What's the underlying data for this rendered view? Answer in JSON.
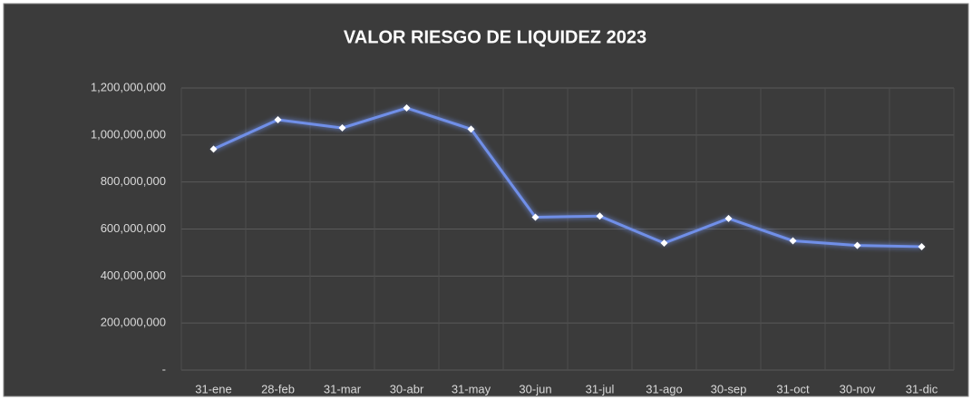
{
  "chart_data": {
    "type": "line",
    "title": "VALOR RIESGO DE LIQUIDEZ 2023",
    "categories": [
      "31-ene",
      "28-feb",
      "31-mar",
      "30-abr",
      "31-may",
      "30-jun",
      "31-jul",
      "31-ago",
      "30-sep",
      "31-oct",
      "30-nov",
      "31-dic"
    ],
    "series": [
      {
        "color": "#6f8fe8",
        "values": [
          940000000,
          1065000000,
          1030000000,
          1115000000,
          1025000000,
          650000000,
          655000000,
          540000000,
          645000000,
          550000000,
          530000000,
          525000000
        ]
      }
    ],
    "ylim": [
      0,
      1200000000
    ],
    "yticks": [
      {
        "value": 0,
        "label": "-"
      },
      {
        "value": 200000000,
        "label": "200,000,000"
      },
      {
        "value": 400000000,
        "label": "400,000,000"
      },
      {
        "value": 600000000,
        "label": "600,000,000"
      },
      {
        "value": 800000000,
        "label": "800,000,000"
      },
      {
        "value": 1000000000,
        "label": "1,000,000,000"
      },
      {
        "value": 1200000000,
        "label": "1,200,000,000"
      }
    ],
    "grid": true
  }
}
